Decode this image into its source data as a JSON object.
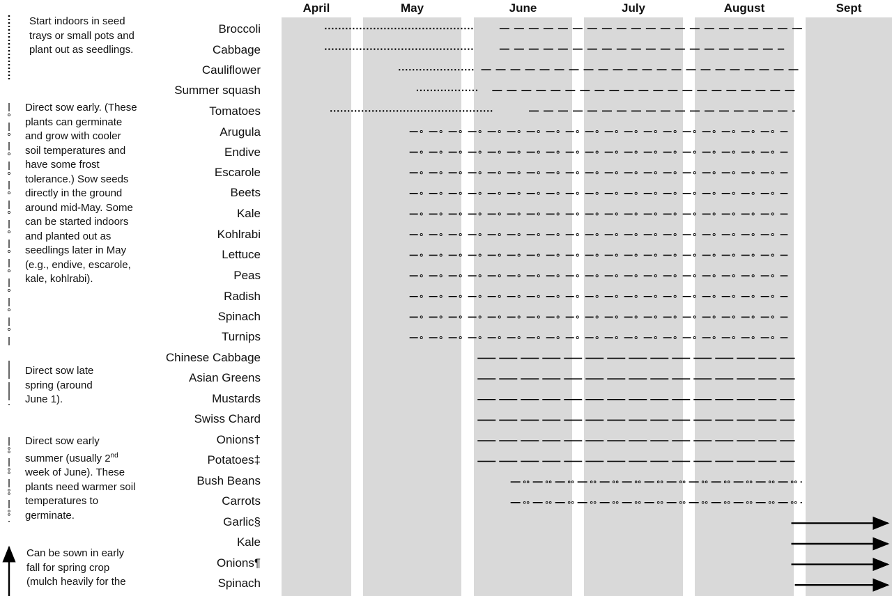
{
  "months": [
    "April",
    "May",
    "June",
    "July",
    "August",
    "Sept"
  ],
  "crops": [
    {
      "name": "Broccoli",
      "style": "dotted",
      "seg1": [
        "Apr 16",
        "May 31"
      ],
      "seg2": [
        "Jun 7",
        "Aug 31"
      ]
    },
    {
      "name": "Cabbage",
      "style": "dotted",
      "seg1": [
        "Apr 16",
        "May 31"
      ],
      "seg2": [
        "Jun 7",
        "Aug 25"
      ]
    },
    {
      "name": "Cauliflower",
      "style": "dotted",
      "seg1": [
        "May 10",
        "May 31"
      ],
      "seg2": [
        "Jun 2",
        "Aug 30"
      ]
    },
    {
      "name": "Summer squash",
      "style": "dotted",
      "seg1": [
        "May 15",
        "Jun 1"
      ],
      "seg2": [
        "Jun 5",
        "Aug 28"
      ]
    },
    {
      "name": "Tomatoes",
      "style": "dotted",
      "seg1": [
        "Apr 18",
        "Jun 5"
      ],
      "seg2": [
        "Jun 15",
        "Aug 28"
      ]
    },
    {
      "name": "Arugula",
      "style": "dash-dot",
      "range": [
        "May 13",
        "Aug 26"
      ]
    },
    {
      "name": "Endive",
      "style": "dash-dot",
      "range": [
        "May 13",
        "Aug 26"
      ]
    },
    {
      "name": "Escarole",
      "style": "dash-dot",
      "range": [
        "May 13",
        "Aug 26"
      ]
    },
    {
      "name": "Beets",
      "style": "dash-dot",
      "range": [
        "May 13",
        "Aug 26"
      ]
    },
    {
      "name": "Kale",
      "style": "dash-dot",
      "range": [
        "May 13",
        "Aug 26"
      ]
    },
    {
      "name": "Kohlrabi",
      "style": "dash-dot",
      "range": [
        "May 13",
        "Aug 26"
      ]
    },
    {
      "name": "Lettuce",
      "style": "dash-dot",
      "range": [
        "May 13",
        "Aug 26"
      ]
    },
    {
      "name": "Peas",
      "style": "dash-dot",
      "range": [
        "May 13",
        "Aug 26"
      ]
    },
    {
      "name": "Radish",
      "style": "dash-dot",
      "range": [
        "May 13",
        "Aug 26"
      ]
    },
    {
      "name": "Spinach",
      "style": "dash-dot",
      "range": [
        "May 13",
        "Aug 26"
      ]
    },
    {
      "name": "Turnips",
      "style": "dash-dot",
      "range": [
        "May 13",
        "Aug 26"
      ]
    },
    {
      "name": "Chinese Cabbage",
      "style": "long-dash",
      "range": [
        "Jun 1",
        "Aug 28"
      ]
    },
    {
      "name": "Asian Greens",
      "style": "long-dash",
      "range": [
        "Jun 1",
        "Aug 28"
      ]
    },
    {
      "name": "Mustards",
      "style": "long-dash",
      "range": [
        "Jun 1",
        "Aug 28"
      ]
    },
    {
      "name": "Swiss Chard",
      "style": "long-dash",
      "range": [
        "Jun 1",
        "Aug 28"
      ]
    },
    {
      "name": "Onions†",
      "style": "long-dash",
      "range": [
        "Jun 1",
        "Aug 28"
      ]
    },
    {
      "name": "Potatoes‡",
      "style": "long-dash",
      "range": [
        "Jun 1",
        "Aug 28"
      ]
    },
    {
      "name": "Bush Beans",
      "style": "dash-2dot",
      "range": [
        "Jun 10",
        "Aug 30"
      ]
    },
    {
      "name": "Carrots",
      "style": "dash-2dot",
      "range": [
        "Jun 10",
        "Aug 30"
      ]
    },
    {
      "name": "Garlic§",
      "style": "arrow",
      "range": [
        "Aug 27",
        "Sept 30"
      ]
    },
    {
      "name": "Kale",
      "style": "arrow",
      "range": [
        "Aug 27",
        "Sept 30"
      ]
    },
    {
      "name": "Onions¶",
      "style": "arrow",
      "range": [
        "Aug 27",
        "Sept 30"
      ]
    },
    {
      "name": "Spinach",
      "style": "arrow",
      "range": [
        "Aug 28",
        "Sept 30"
      ]
    }
  ],
  "legend": [
    {
      "style": "dotted",
      "lines": [
        "Start indoors in seed",
        "trays or small pots and",
        "plant out as seedlings."
      ]
    },
    {
      "style": "dash-dot",
      "lines": [
        "Direct sow early. (These",
        "plants can germinate",
        "and grow with cooler",
        "soil temperatures and",
        "have some frost",
        "tolerance.) Sow seeds",
        "directly in the ground",
        "around mid-May. Some",
        "can be started indoors",
        "and planted out as",
        "seedlings later in May",
        "(e.g., endive, escarole,",
        "kale, kohlrabi)."
      ]
    },
    {
      "style": "long-dash",
      "lines": [
        "Direct sow late",
        "spring (around",
        "June 1)."
      ]
    },
    {
      "style": "dash-2dot",
      "lines_html": [
        "Direct sow early",
        "summer (usually 2",
        "week of June). These",
        "plants need warmer soil",
        "temperatures to",
        "germinate."
      ],
      "superscript": "nd"
    },
    {
      "style": "arrow",
      "lines": [
        "Can be sown in early",
        "fall for spring crop",
        "(mulch heavily for the"
      ]
    }
  ]
}
